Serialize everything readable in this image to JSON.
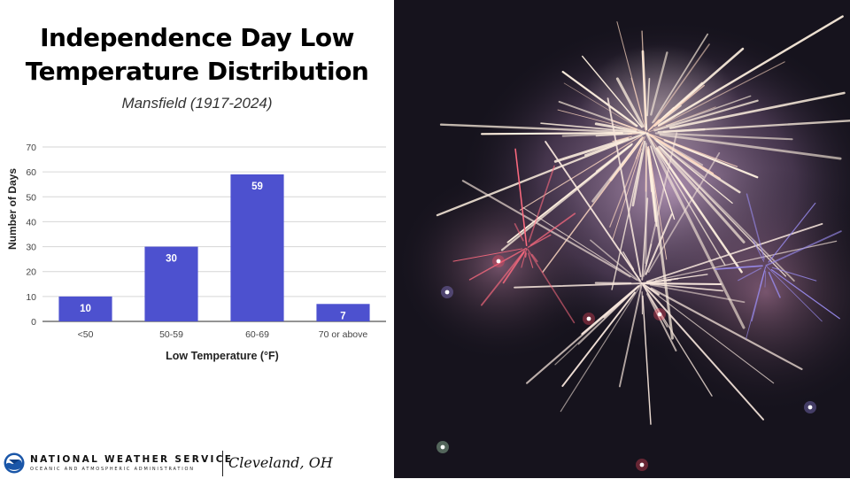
{
  "title_line1": "Independence Day Low",
  "title_line2": "Temperature Distribution",
  "subtitle": "Mansfield (1917-2024)",
  "chart_data": {
    "type": "bar",
    "title": "Independence Day Low Temperature Distribution",
    "subtitle": "Mansfield (1917-2024)",
    "categories": [
      "<50",
      "50-59",
      "60-69",
      "70 or above"
    ],
    "values": [
      10,
      30,
      59,
      7
    ],
    "data_labels": [
      "10",
      "30",
      "59",
      "7"
    ],
    "xlabel": "Low Temperature (°F)",
    "ylabel": "Number of Days",
    "ylim": [
      0,
      70
    ],
    "yticks": [
      0,
      10,
      20,
      30,
      40,
      50,
      60,
      70
    ],
    "grid": true,
    "legend": "none",
    "colors": {
      "bar": "#4d51cf",
      "grid": "#d6d6d6",
      "axis": "#555555",
      "label": "#ffffff"
    }
  },
  "footer": {
    "agency": "NATIONAL WEATHER SERVICE",
    "agency_sub": "OCEANIC AND ATMOSPHERIC ADMINISTRATION",
    "office": "Cleveland, OH",
    "logo_icon": "noaa-logo-icon"
  },
  "photo": {
    "subject": "fireworks-photo",
    "colors": {
      "sky": "#14121c",
      "smoke": "#8a6f92",
      "spark": "#fff4e6",
      "red": "#e2334f",
      "blue": "#7a7ae8"
    }
  }
}
